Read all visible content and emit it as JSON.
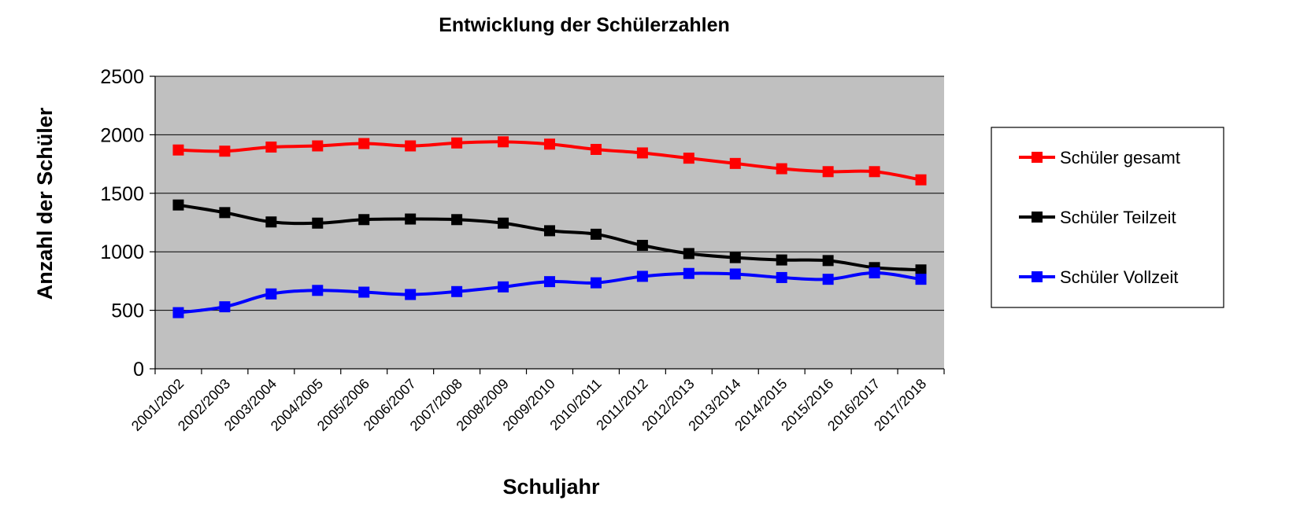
{
  "chart_data": {
    "type": "line",
    "title": "Entwicklung der Schülerzahlen",
    "xlabel": "Schuljahr",
    "ylabel": "Anzahl der Schüler",
    "ylim": [
      0,
      2500
    ],
    "yticks": [
      0,
      500,
      1000,
      1500,
      2000,
      2500
    ],
    "grid": true,
    "plot_background": "#c0c0c0",
    "legend_position": "right",
    "categories": [
      "2001/2002",
      "2002/2003",
      "2003/2004",
      "2004/2005",
      "2005/2006",
      "2006/2007",
      "2007/2008",
      "2008/2009",
      "2009/2010",
      "2010/2011",
      "2011/2012",
      "2012/2013",
      "2013/2014",
      "2014/2015",
      "2015/2016",
      "2016/2017",
      "2017/2018"
    ],
    "series": [
      {
        "name": "Schüler gesamt",
        "color": "#ff0000",
        "values": [
          1870,
          1860,
          1895,
          1905,
          1925,
          1905,
          1930,
          1940,
          1920,
          1875,
          1845,
          1800,
          1755,
          1710,
          1685,
          1685,
          1615
        ]
      },
      {
        "name": "Schüler Teilzeit",
        "color": "#000000",
        "values": [
          1400,
          1335,
          1255,
          1245,
          1275,
          1280,
          1275,
          1245,
          1180,
          1150,
          1055,
          985,
          950,
          930,
          925,
          865,
          845
        ]
      },
      {
        "name": "Schüler Vollzeit",
        "color": "#0000ff",
        "values": [
          480,
          530,
          640,
          670,
          655,
          635,
          660,
          700,
          745,
          735,
          790,
          815,
          810,
          780,
          765,
          820,
          765
        ]
      }
    ]
  }
}
